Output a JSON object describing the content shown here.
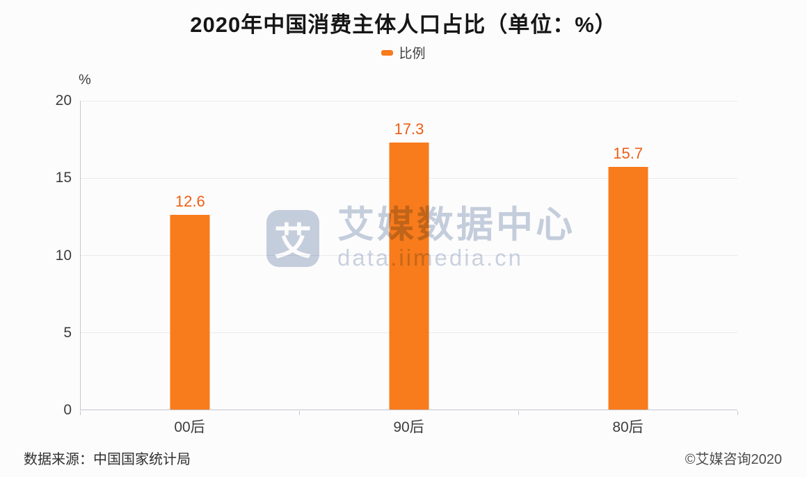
{
  "title": "2020年中国消费主体人口占比（单位：%）",
  "legend": {
    "label": "比例",
    "marker_color": "#F87B1C"
  },
  "chart_data": {
    "type": "bar",
    "title": "2020年中国消费主体人口占比（单位：%）",
    "categories": [
      "00后",
      "90后",
      "80后"
    ],
    "series": [
      {
        "name": "比例",
        "values": [
          12.6,
          17.3,
          15.7
        ]
      }
    ],
    "xlabel": "",
    "ylabel": "%",
    "ylim": [
      0,
      20
    ],
    "yticks": [
      0,
      5,
      10,
      15,
      20
    ],
    "grid": true,
    "legend_position": "top",
    "bar_color": "#F87B1C",
    "value_label_color": "#EC5F16",
    "axis_color": "#C5C5CC",
    "gridline_color": "#EAEAEF"
  },
  "watermark": {
    "logo_char": "艾",
    "text": "艾媒数据中心",
    "subtext": "data.iimedia.cn",
    "color": "#C6D0DD"
  },
  "footer": {
    "source": "数据来源：中国国家统计局",
    "copyright": "©艾媒咨询2020"
  }
}
